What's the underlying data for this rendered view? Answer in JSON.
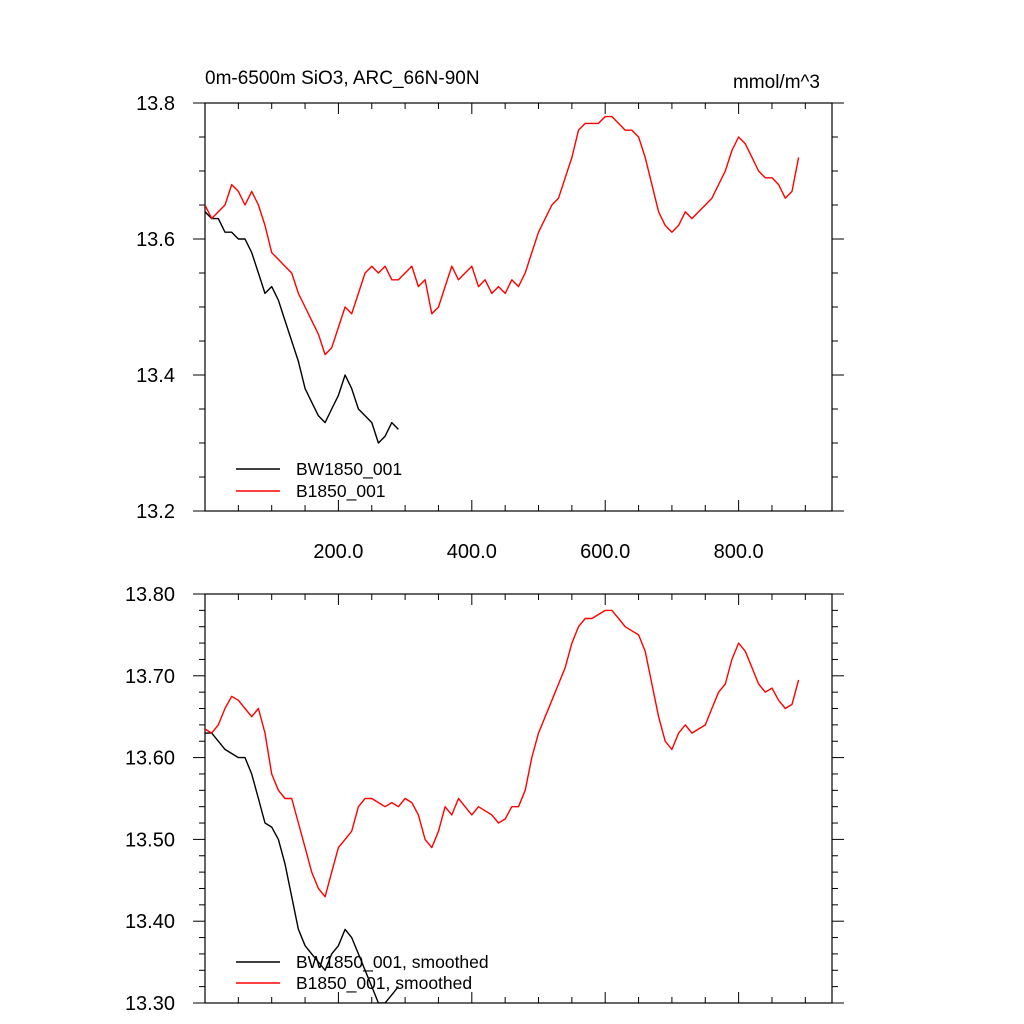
{
  "chart_data": [
    {
      "type": "line",
      "title": "0m-6500m SiO3, ARC_66N-90N",
      "units": "mmol/m^3",
      "xlim": [
        0,
        940
      ],
      "ylim": [
        13.2,
        13.8
      ],
      "x_ticks": [
        200,
        400,
        600,
        800
      ],
      "x_tick_labels": [
        "200.0",
        "400.0",
        "600.0",
        "800.0"
      ],
      "y_ticks": [
        13.2,
        13.4,
        13.6,
        13.8
      ],
      "y_tick_labels": [
        "13.2",
        "13.4",
        "13.6",
        "13.8"
      ],
      "legend_position": "bottom-left",
      "series": [
        {
          "name": "BW1850_001",
          "color": "#000000",
          "points": [
            [
              0,
              13.64
            ],
            [
              10,
              13.63
            ],
            [
              20,
              13.63
            ],
            [
              30,
              13.61
            ],
            [
              40,
              13.61
            ],
            [
              50,
              13.6
            ],
            [
              60,
              13.6
            ],
            [
              70,
              13.58
            ],
            [
              80,
              13.55
            ],
            [
              90,
              13.52
            ],
            [
              100,
              13.53
            ],
            [
              110,
              13.51
            ],
            [
              120,
              13.48
            ],
            [
              130,
              13.45
            ],
            [
              140,
              13.42
            ],
            [
              150,
              13.38
            ],
            [
              160,
              13.36
            ],
            [
              170,
              13.34
            ],
            [
              180,
              13.33
            ],
            [
              190,
              13.35
            ],
            [
              200,
              13.37
            ],
            [
              210,
              13.4
            ],
            [
              220,
              13.38
            ],
            [
              230,
              13.35
            ],
            [
              240,
              13.34
            ],
            [
              250,
              13.33
            ],
            [
              260,
              13.3
            ],
            [
              270,
              13.31
            ],
            [
              280,
              13.33
            ],
            [
              290,
              13.32
            ]
          ]
        },
        {
          "name": "B1850_001",
          "color": "#ff0000",
          "points": [
            [
              0,
              13.65
            ],
            [
              10,
              13.63
            ],
            [
              20,
              13.64
            ],
            [
              30,
              13.65
            ],
            [
              40,
              13.68
            ],
            [
              50,
              13.67
            ],
            [
              60,
              13.65
            ],
            [
              70,
              13.67
            ],
            [
              80,
              13.65
            ],
            [
              90,
              13.62
            ],
            [
              100,
              13.58
            ],
            [
              110,
              13.57
            ],
            [
              120,
              13.56
            ],
            [
              130,
              13.55
            ],
            [
              140,
              13.52
            ],
            [
              150,
              13.5
            ],
            [
              160,
              13.48
            ],
            [
              170,
              13.46
            ],
            [
              180,
              13.43
            ],
            [
              190,
              13.44
            ],
            [
              200,
              13.47
            ],
            [
              210,
              13.5
            ],
            [
              220,
              13.49
            ],
            [
              230,
              13.52
            ],
            [
              240,
              13.55
            ],
            [
              250,
              13.56
            ],
            [
              260,
              13.55
            ],
            [
              270,
              13.56
            ],
            [
              280,
              13.54
            ],
            [
              290,
              13.54
            ],
            [
              300,
              13.55
            ],
            [
              310,
              13.56
            ],
            [
              320,
              13.53
            ],
            [
              330,
              13.54
            ],
            [
              340,
              13.49
            ],
            [
              350,
              13.5
            ],
            [
              360,
              13.53
            ],
            [
              370,
              13.56
            ],
            [
              380,
              13.54
            ],
            [
              390,
              13.55
            ],
            [
              400,
              13.56
            ],
            [
              410,
              13.53
            ],
            [
              420,
              13.54
            ],
            [
              430,
              13.52
            ],
            [
              440,
              13.53
            ],
            [
              450,
              13.52
            ],
            [
              460,
              13.54
            ],
            [
              470,
              13.53
            ],
            [
              480,
              13.55
            ],
            [
              490,
              13.58
            ],
            [
              500,
              13.61
            ],
            [
              510,
              13.63
            ],
            [
              520,
              13.65
            ],
            [
              530,
              13.66
            ],
            [
              540,
              13.69
            ],
            [
              550,
              13.72
            ],
            [
              560,
              13.76
            ],
            [
              570,
              13.77
            ],
            [
              580,
              13.77
            ],
            [
              590,
              13.77
            ],
            [
              600,
              13.78
            ],
            [
              610,
              13.78
            ],
            [
              620,
              13.77
            ],
            [
              630,
              13.76
            ],
            [
              640,
              13.76
            ],
            [
              650,
              13.75
            ],
            [
              660,
              13.72
            ],
            [
              670,
              13.68
            ],
            [
              680,
              13.64
            ],
            [
              690,
              13.62
            ],
            [
              700,
              13.61
            ],
            [
              710,
              13.62
            ],
            [
              720,
              13.64
            ],
            [
              730,
              13.63
            ],
            [
              740,
              13.64
            ],
            [
              750,
              13.65
            ],
            [
              760,
              13.66
            ],
            [
              770,
              13.68
            ],
            [
              780,
              13.7
            ],
            [
              790,
              13.73
            ],
            [
              800,
              13.75
            ],
            [
              810,
              13.74
            ],
            [
              820,
              13.72
            ],
            [
              830,
              13.7
            ],
            [
              840,
              13.69
            ],
            [
              850,
              13.69
            ],
            [
              860,
              13.68
            ],
            [
              870,
              13.66
            ],
            [
              880,
              13.67
            ],
            [
              890,
              13.72
            ]
          ]
        }
      ]
    },
    {
      "type": "line",
      "title": "",
      "xlim": [
        0,
        940
      ],
      "ylim": [
        13.3,
        13.8
      ],
      "y_ticks": [
        13.3,
        13.4,
        13.5,
        13.6,
        13.7,
        13.8
      ],
      "y_tick_labels": [
        "13.30",
        "13.40",
        "13.50",
        "13.60",
        "13.70",
        "13.80"
      ],
      "legend_position": "bottom-left",
      "series": [
        {
          "name": "BW1850_001, smoothed",
          "color": "#000000",
          "points": [
            [
              0,
              13.63
            ],
            [
              10,
              13.63
            ],
            [
              20,
              13.62
            ],
            [
              30,
              13.61
            ],
            [
              40,
              13.605
            ],
            [
              50,
              13.6
            ],
            [
              60,
              13.6
            ],
            [
              70,
              13.58
            ],
            [
              80,
              13.55
            ],
            [
              90,
              13.52
            ],
            [
              100,
              13.515
            ],
            [
              110,
              13.5
            ],
            [
              120,
              13.47
            ],
            [
              130,
              13.43
            ],
            [
              140,
              13.39
            ],
            [
              150,
              13.37
            ],
            [
              160,
              13.36
            ],
            [
              170,
              13.35
            ],
            [
              180,
              13.34
            ],
            [
              190,
              13.36
            ],
            [
              200,
              13.37
            ],
            [
              210,
              13.39
            ],
            [
              220,
              13.38
            ],
            [
              230,
              13.36
            ],
            [
              240,
              13.34
            ],
            [
              250,
              13.32
            ],
            [
              260,
              13.3
            ],
            [
              270,
              13.3
            ],
            [
              280,
              13.31
            ],
            [
              290,
              13.32
            ]
          ]
        },
        {
          "name": "B1850_001, smoothed",
          "color": "#ff0000",
          "points": [
            [
              0,
              13.635
            ],
            [
              10,
              13.63
            ],
            [
              20,
              13.64
            ],
            [
              30,
              13.66
            ],
            [
              40,
              13.675
            ],
            [
              50,
              13.67
            ],
            [
              60,
              13.66
            ],
            [
              70,
              13.65
            ],
            [
              80,
              13.66
            ],
            [
              90,
              13.63
            ],
            [
              100,
              13.58
            ],
            [
              110,
              13.56
            ],
            [
              120,
              13.55
            ],
            [
              130,
              13.55
            ],
            [
              140,
              13.52
            ],
            [
              150,
              13.49
            ],
            [
              160,
              13.46
            ],
            [
              170,
              13.44
            ],
            [
              180,
              13.43
            ],
            [
              190,
              13.46
            ],
            [
              200,
              13.49
            ],
            [
              210,
              13.5
            ],
            [
              220,
              13.51
            ],
            [
              230,
              13.54
            ],
            [
              240,
              13.55
            ],
            [
              250,
              13.55
            ],
            [
              260,
              13.545
            ],
            [
              270,
              13.54
            ],
            [
              280,
              13.545
            ],
            [
              290,
              13.54
            ],
            [
              300,
              13.55
            ],
            [
              310,
              13.545
            ],
            [
              320,
              13.53
            ],
            [
              330,
              13.5
            ],
            [
              340,
              13.49
            ],
            [
              350,
              13.51
            ],
            [
              360,
              13.54
            ],
            [
              370,
              13.53
            ],
            [
              380,
              13.55
            ],
            [
              390,
              13.54
            ],
            [
              400,
              13.53
            ],
            [
              410,
              13.54
            ],
            [
              420,
              13.535
            ],
            [
              430,
              13.53
            ],
            [
              440,
              13.52
            ],
            [
              450,
              13.525
            ],
            [
              460,
              13.54
            ],
            [
              470,
              13.54
            ],
            [
              480,
              13.56
            ],
            [
              490,
              13.6
            ],
            [
              500,
              13.63
            ],
            [
              510,
              13.65
            ],
            [
              520,
              13.67
            ],
            [
              530,
              13.69
            ],
            [
              540,
              13.71
            ],
            [
              550,
              13.74
            ],
            [
              560,
              13.76
            ],
            [
              570,
              13.77
            ],
            [
              580,
              13.77
            ],
            [
              590,
              13.775
            ],
            [
              600,
              13.78
            ],
            [
              610,
              13.78
            ],
            [
              620,
              13.77
            ],
            [
              630,
              13.76
            ],
            [
              640,
              13.755
            ],
            [
              650,
              13.75
            ],
            [
              660,
              13.73
            ],
            [
              670,
              13.69
            ],
            [
              680,
              13.65
            ],
            [
              690,
              13.62
            ],
            [
              700,
              13.61
            ],
            [
              710,
              13.63
            ],
            [
              720,
              13.64
            ],
            [
              730,
              13.63
            ],
            [
              740,
              13.635
            ],
            [
              750,
              13.64
            ],
            [
              760,
              13.66
            ],
            [
              770,
              13.68
            ],
            [
              780,
              13.69
            ],
            [
              790,
              13.72
            ],
            [
              800,
              13.74
            ],
            [
              810,
              13.73
            ],
            [
              820,
              13.71
            ],
            [
              830,
              13.69
            ],
            [
              840,
              13.68
            ],
            [
              850,
              13.685
            ],
            [
              860,
              13.67
            ],
            [
              870,
              13.66
            ],
            [
              880,
              13.665
            ],
            [
              890,
              13.695
            ]
          ]
        }
      ]
    }
  ]
}
